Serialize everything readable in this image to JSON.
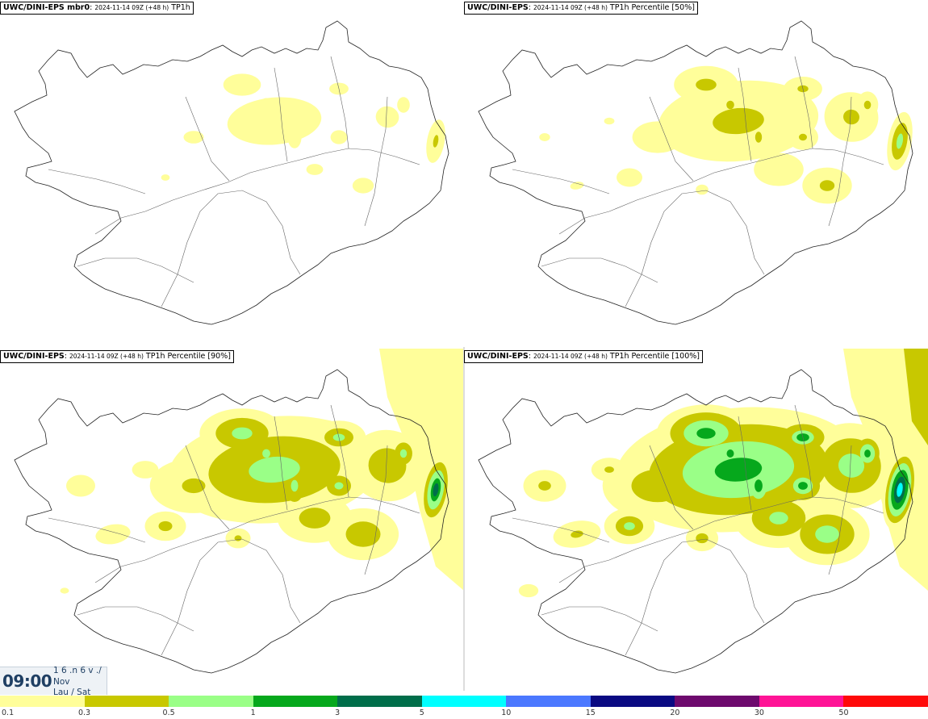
{
  "panels": [
    {
      "model": "UWC/DINI-EPS mbr0",
      "date": "2024-11-14 09Z (+48 h)",
      "field": "TP1h"
    },
    {
      "model": "UWC/DINI-EPS",
      "date": "2024-11-14 09Z (+48 h)",
      "field": "TP1h Percentile [50%]"
    },
    {
      "model": "UWC/DINI-EPS",
      "date": "2024-11-14 09Z (+48 h)",
      "field": "TP1h Percentile [90%]"
    },
    {
      "model": "UWC/DINI-EPS",
      "date": "2024-11-14 09Z (+48 h)",
      "field": "TP1h Percentile [100%]"
    }
  ],
  "timebox": {
    "time": "09:00",
    "line1": "1 6 .n 6 v ./",
    "line2": "Nov",
    "line3": "Lau / Sat"
  },
  "colorscale": {
    "colors": [
      "#fffe9a",
      "#c8c800",
      "#9aff87",
      "#06a81c",
      "#006e4a",
      "#00ffff",
      "#4b78ff",
      "#0a0a82",
      "#6e0a6e",
      "#ff1496",
      "#ff0a0a"
    ],
    "labels": [
      "0.1",
      "0.3",
      "0.5",
      "1",
      "3",
      "5",
      "10",
      "15",
      "20",
      "30",
      "50"
    ]
  },
  "layers": {
    "colors": [
      "#fffe9a",
      "#c8c800",
      "#9aff87",
      "#06a81c",
      "#006e4a",
      "#00ffff"
    ],
    "panel_scale": [
      0.55,
      0.85,
      1.25,
      1.6
    ]
  }
}
